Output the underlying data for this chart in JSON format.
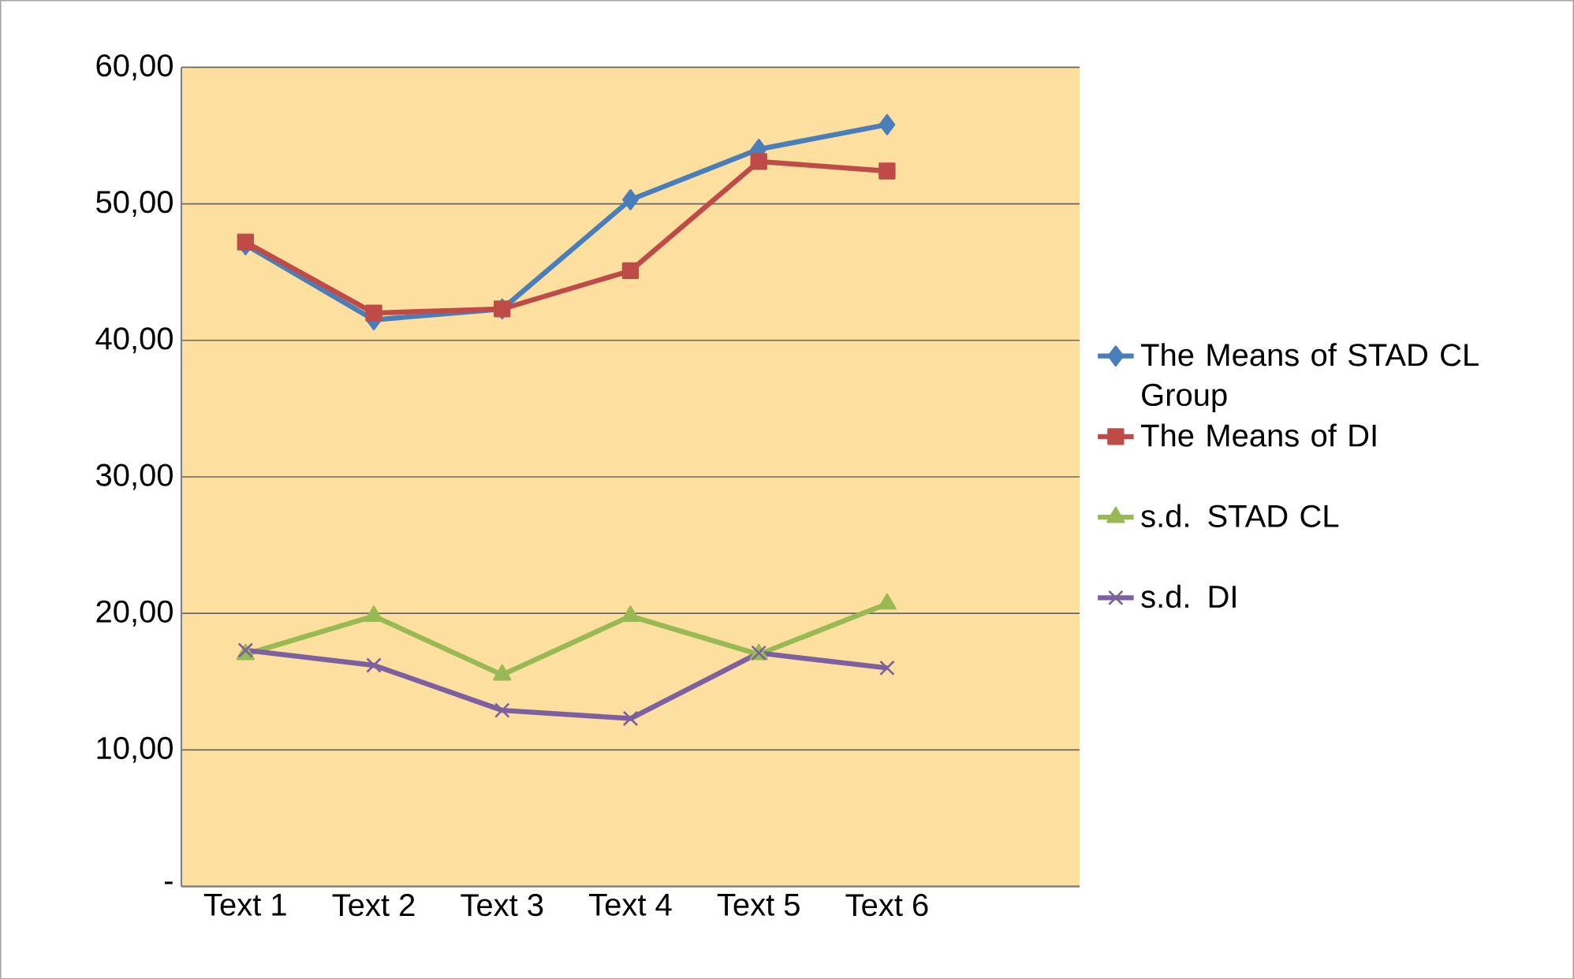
{
  "chart_data": {
    "type": "line",
    "categories": [
      "Text 1",
      "Text 2",
      "Text 3",
      "Text 4",
      "Text 5",
      "Text 6",
      null
    ],
    "series": [
      {
        "name": "The Means of STAD CL Group",
        "color": "#4a7ebb",
        "marker": "diamond",
        "values": [
          47.0,
          41.5,
          42.3,
          50.3,
          54.0,
          55.8,
          null
        ]
      },
      {
        "name": "The Means of DI",
        "color": "#be4b48",
        "marker": "square",
        "values": [
          47.2,
          42.0,
          42.3,
          45.1,
          53.1,
          52.4,
          null
        ]
      },
      {
        "name": "s.d. STAD CL",
        "color": "#98b954",
        "marker": "triangle",
        "values": [
          17.0,
          19.8,
          15.5,
          19.8,
          17.0,
          20.7,
          null
        ]
      },
      {
        "name": "s.d. DI",
        "color": "#7d60a0",
        "marker": "cross",
        "values": [
          17.3,
          16.2,
          12.9,
          12.3,
          17.1,
          16.0,
          null
        ]
      }
    ],
    "ylim": [
      0,
      60
    ],
    "yticks": [
      {
        "value": 0,
        "label": "-"
      },
      {
        "value": 10,
        "label": "10,00"
      },
      {
        "value": 20,
        "label": "20,00"
      },
      {
        "value": 30,
        "label": "30,00"
      },
      {
        "value": 40,
        "label": "40,00"
      },
      {
        "value": 50,
        "label": "50,00"
      },
      {
        "value": 60,
        "label": "60,00"
      }
    ],
    "grid": "y",
    "legend": "right",
    "line_style": "solid"
  }
}
